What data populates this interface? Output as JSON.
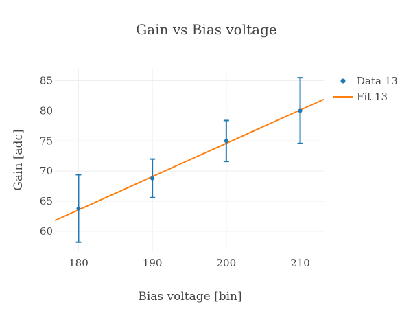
{
  "chart_data": {
    "type": "scatter",
    "title": "Gain vs Bias voltage",
    "xlabel": "Bias voltage [bin]",
    "ylabel": "Gain [adc]",
    "xlim": [
      176.8,
      213.2
    ],
    "ylim": [
      56.8,
      87.0
    ],
    "xticks": [
      180,
      190,
      200,
      210
    ],
    "yticks": [
      60,
      65,
      70,
      75,
      80,
      85
    ],
    "grid": true,
    "legend_position": "top-right",
    "series": [
      {
        "name": "Data 13",
        "kind": "markers-with-error-bars",
        "color": "#1f77b4",
        "x": [
          180,
          190,
          200,
          210
        ],
        "y": [
          63.8,
          68.8,
          75.0,
          80.0
        ],
        "err_plus": [
          5.6,
          3.2,
          3.4,
          5.5
        ],
        "err_minus": [
          5.6,
          3.2,
          3.4,
          5.4
        ]
      },
      {
        "name": "Fit 13",
        "kind": "line",
        "color": "#ff7f0e",
        "x": [
          176.8,
          213.2
        ],
        "y": [
          61.8,
          81.9
        ]
      }
    ]
  }
}
